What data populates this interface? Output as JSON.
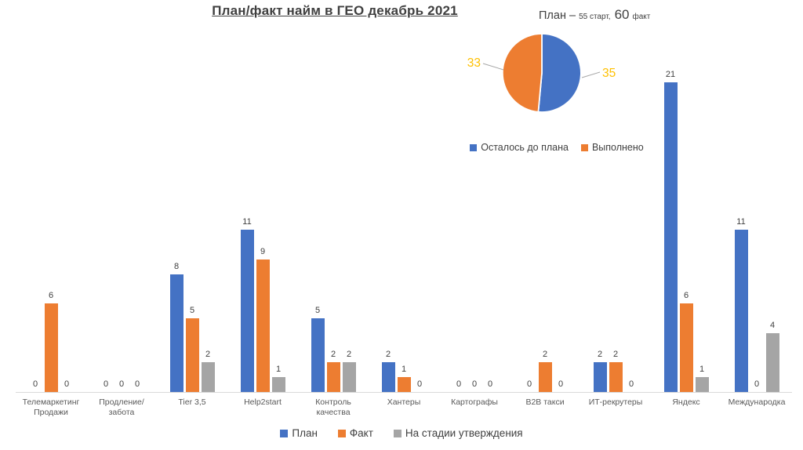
{
  "chart_data": [
    {
      "type": "pie",
      "title_text": "План – 55 старт, 60 факт",
      "title_parts": {
        "big1": "План –",
        "small1": "55 старт,",
        "big2": "60",
        "small2": "факт"
      },
      "slices": [
        {
          "label": "Осталось до плана",
          "value": 35,
          "color": "#4472C4"
        },
        {
          "label": "Выполнено",
          "value": 33,
          "color": "#ED7D31"
        }
      ],
      "data_label_color": "#FFC000",
      "legend_position": "bottom",
      "start_angle": 0
    },
    {
      "type": "bar",
      "title": "План/факт найм в ГЕО декабрь 2021",
      "categories": [
        "Телемаркетинг Продажи",
        "Продление/забота",
        "Tier 3,5",
        "Help2start",
        "Контроль качества",
        "Хантеры",
        "Картографы",
        "B2B такси",
        "ИТ-рекрутеры",
        "Яндекс",
        "Международка"
      ],
      "series": [
        {
          "name": "План",
          "color": "#4472C4",
          "values": [
            0,
            0,
            8,
            11,
            5,
            2,
            0,
            0,
            2,
            21,
            11
          ]
        },
        {
          "name": "Факт",
          "color": "#ED7D31",
          "values": [
            6,
            0,
            5,
            9,
            2,
            1,
            0,
            2,
            2,
            6,
            0
          ]
        },
        {
          "name": "На стадии утверждения",
          "color": "#A5A5A5",
          "values": [
            0,
            0,
            2,
            1,
            2,
            0,
            0,
            0,
            0,
            1,
            4
          ]
        }
      ],
      "ylim": [
        0,
        21
      ],
      "gridlines": false,
      "data_labels": true,
      "legend_position": "bottom"
    }
  ],
  "colors": {
    "axis_line": "#D9D9D9",
    "text_dark": "#404040",
    "text_axis": "#595959",
    "leader_line": "#A6A6A6",
    "pie_data_label": "#FFC000"
  }
}
